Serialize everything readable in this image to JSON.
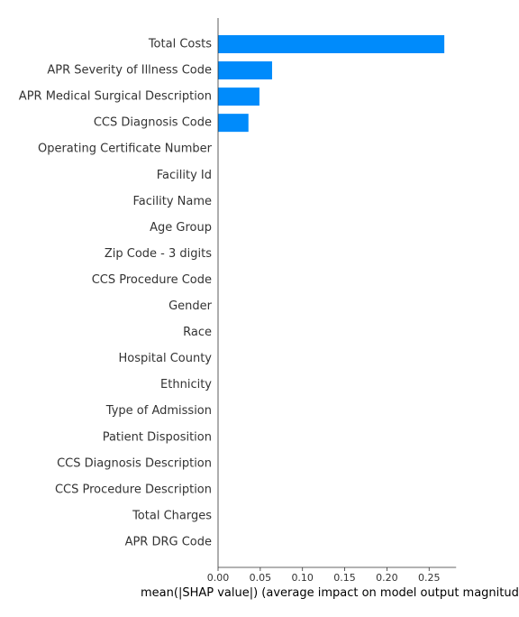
{
  "chart_data": {
    "type": "bar",
    "orientation": "horizontal",
    "categories": [
      "Total Costs",
      "APR Severity of Illness Code",
      "APR Medical Surgical Description",
      "CCS Diagnosis Code",
      "Operating Certificate Number",
      "Facility Id",
      "Facility Name",
      "Age Group",
      "Zip Code - 3 digits",
      "CCS Procedure Code",
      "Gender",
      "Race",
      "Hospital County",
      "Ethnicity",
      "Type of Admission",
      "Patient Disposition",
      "CCS Diagnosis Description",
      "CCS Procedure Description",
      "Total Charges",
      "APR DRG Code"
    ],
    "values": [
      0.268,
      0.064,
      0.049,
      0.036,
      0,
      0,
      0,
      0,
      0,
      0,
      0,
      0,
      0,
      0,
      0,
      0,
      0,
      0,
      0,
      0
    ],
    "xlabel": "mean(|SHAP value|) (average impact on model output magnitude)",
    "xlim": [
      0,
      0.282
    ],
    "xticks": [
      "0.00",
      "0.05",
      "0.10",
      "0.15",
      "0.20",
      "0.25"
    ],
    "grid": false,
    "bar_color": "#008bfb",
    "axis_color": "#333333"
  }
}
